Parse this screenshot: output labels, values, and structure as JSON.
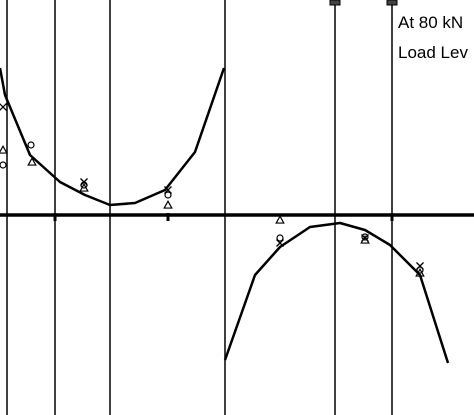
{
  "chart_data": {
    "type": "line",
    "annotation": [
      "At 80 kN",
      "Load Lev"
    ],
    "x_range": [
      0,
      474
    ],
    "y_range": [
      -200,
      215
    ],
    "vertical_lines": [
      7,
      55,
      110,
      225,
      335,
      392
    ],
    "top_markers": [
      335,
      392
    ],
    "baseline_ticks": [
      55,
      168,
      392
    ],
    "series": [
      {
        "kind": "curve",
        "segments": [
          [
            [
              0,
              147
            ],
            [
              5,
              120
            ],
            [
              30,
              60
            ],
            [
              60,
              33
            ],
            [
              85,
              20
            ],
            [
              110,
              10
            ],
            [
              135,
              12
            ],
            [
              165,
              25
            ],
            [
              195,
              63
            ],
            [
              224,
              147
            ]
          ],
          [
            [
              225,
              -145
            ],
            [
              255,
              -60
            ],
            [
              280,
              -32
            ],
            [
              310,
              -12
            ],
            [
              340,
              -8
            ],
            [
              365,
              -15
            ],
            [
              390,
              -30
            ],
            [
              420,
              -60
            ],
            [
              448,
              -148
            ]
          ]
        ]
      },
      {
        "kind": "marker",
        "symbol": "x",
        "points": [
          [
            3,
            108
          ],
          [
            84,
            33
          ],
          [
            168,
            25
          ],
          [
            280,
            -28
          ],
          [
            365,
            -23
          ],
          [
            420,
            -51
          ]
        ]
      },
      {
        "kind": "marker",
        "symbol": "o",
        "points": [
          [
            3,
            50
          ],
          [
            31,
            70
          ],
          [
            84,
            30
          ],
          [
            168,
            20
          ],
          [
            280,
            -23
          ],
          [
            365,
            -22
          ],
          [
            420,
            -55
          ]
        ]
      },
      {
        "kind": "marker",
        "symbol": "triangle",
        "points": [
          [
            3,
            65
          ],
          [
            32,
            53
          ],
          [
            84,
            27
          ],
          [
            168,
            10
          ],
          [
            280,
            -5
          ],
          [
            365,
            -25
          ],
          [
            420,
            -58
          ]
        ]
      }
    ]
  }
}
